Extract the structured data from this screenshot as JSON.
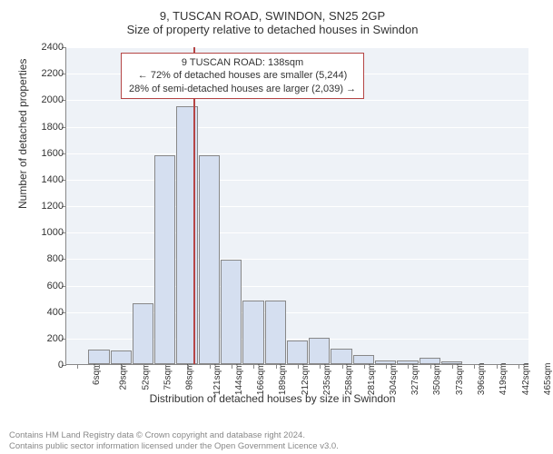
{
  "title_line1": "9, TUSCAN ROAD, SWINDON, SN25 2GP",
  "title_line2": "Size of property relative to detached houses in Swindon",
  "ylabel": "Number of detached properties",
  "xlabel": "Distribution of detached houses by size in Swindon",
  "ylim": [
    0,
    2400
  ],
  "ytick_step": 200,
  "x_categories": [
    "6sqm",
    "29sqm",
    "52sqm",
    "75sqm",
    "98sqm",
    "121sqm",
    "144sqm",
    "166sqm",
    "189sqm",
    "212sqm",
    "235sqm",
    "258sqm",
    "281sqm",
    "304sqm",
    "327sqm",
    "350sqm",
    "373sqm",
    "396sqm",
    "419sqm",
    "442sqm",
    "465sqm"
  ],
  "values": [
    0,
    110,
    100,
    460,
    1580,
    1950,
    1580,
    790,
    480,
    480,
    180,
    200,
    120,
    70,
    30,
    30,
    50,
    20,
    0,
    0,
    0
  ],
  "bar_color": "#d5dff0",
  "bar_border": "#888888",
  "plot_bg": "#eef2f7",
  "grid_color": "#ffffff",
  "reference_x_index": 5.75,
  "reference_color": "#b54545",
  "annotation": {
    "line1": "9 TUSCAN ROAD: 138sqm",
    "line2": "← 72% of detached houses are smaller (5,244)",
    "line3": "28% of semi-detached houses are larger (2,039) →"
  },
  "footer_line1": "Contains HM Land Registry data © Crown copyright and database right 2024.",
  "footer_line2": "Contains public sector information licensed under the Open Government Licence v3.0."
}
